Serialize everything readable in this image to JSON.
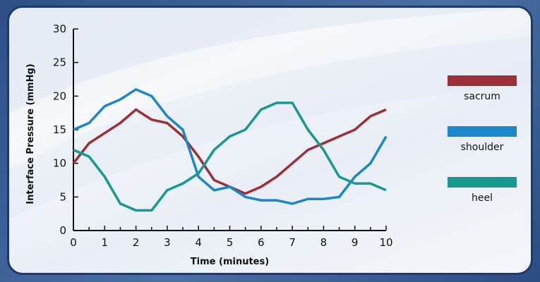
{
  "chart_data": {
    "type": "line",
    "title": "",
    "xlabel": "Time (minutes)",
    "ylabel": "Interface Pressure (mmHg)",
    "xlim": [
      0,
      10
    ],
    "ylim": [
      0,
      30
    ],
    "xticks": [
      "0",
      "1",
      "2",
      "3",
      "4",
      "5",
      "6",
      "7",
      "8",
      "9",
      "10"
    ],
    "yticks": [
      "0",
      "5",
      "10",
      "15",
      "20",
      "25",
      "30"
    ],
    "grid": false,
    "legend": "right",
    "x": [
      0,
      0.5,
      1,
      1.5,
      2,
      2.5,
      3,
      3.5,
      4,
      4.5,
      5,
      5.5,
      6,
      6.5,
      7,
      7.5,
      8,
      8.5,
      9,
      9.5,
      10
    ],
    "series": [
      {
        "name": "sacrum",
        "color": "#9b3036",
        "values": [
          10,
          13,
          14.5,
          16,
          18,
          16.5,
          16,
          14,
          11,
          7.5,
          6.5,
          5.5,
          6.5,
          8,
          10,
          12,
          13,
          14,
          15,
          17,
          18
        ]
      },
      {
        "name": "shoulder",
        "color": "#1b86c8",
        "values": [
          15,
          16,
          18.5,
          19.5,
          21,
          20,
          17,
          15,
          8,
          6,
          6.5,
          5,
          4.5,
          4.5,
          4,
          4.7,
          4.7,
          5,
          8,
          10,
          14
        ]
      },
      {
        "name": "heel",
        "color": "#179990",
        "values": [
          12,
          11,
          8,
          4,
          3,
          3,
          6,
          7,
          8.5,
          12,
          14,
          15,
          18,
          19,
          19,
          15,
          12,
          8,
          7,
          7,
          6
        ]
      }
    ]
  }
}
